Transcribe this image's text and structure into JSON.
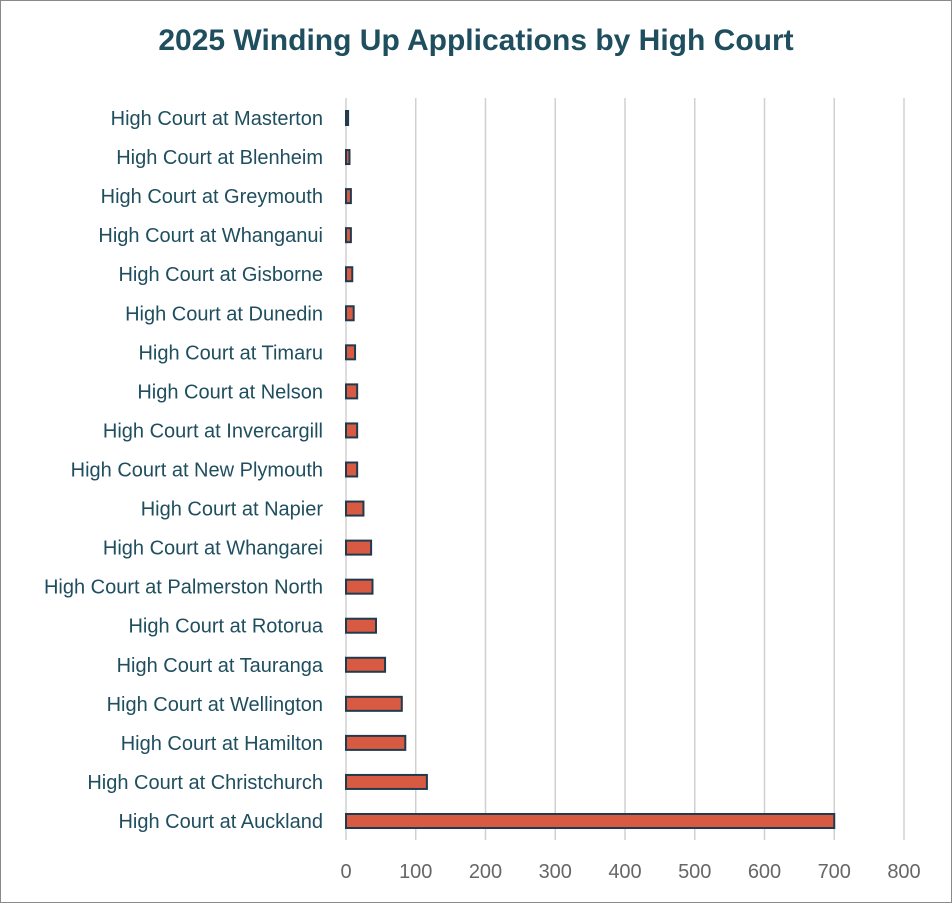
{
  "chart_data": {
    "type": "bar",
    "orientation": "horizontal",
    "title": "2025 Winding Up Applications by High Court",
    "xlabel": "",
    "ylabel": "",
    "xlim": [
      0,
      800
    ],
    "xticks": [
      "0",
      "100",
      "200",
      "300",
      "400",
      "500",
      "600",
      "700",
      "800"
    ],
    "grid": "vertical",
    "legend": "none",
    "colors": {
      "bar_fill": "#d95a43",
      "bar_stroke": "#1f3b4d",
      "grid": "#d0d0d0",
      "label": "#1f4e5f",
      "tick": "#666666"
    },
    "categories": [
      "High Court at Masterton",
      "High Court at Blenheim",
      "High Court at Greymouth",
      "High Court at Whanganui",
      "High Court at Gisborne",
      "High Court at Dunedin",
      "High Court at Timaru",
      "High Court at Nelson",
      "High Court at Invercargill",
      "High Court at New Plymouth",
      "High Court at Napier",
      "High Court at Whangarei",
      "High Court at Palmerston North",
      "High Court at Rotorua",
      "High Court at Tauranga",
      "High Court at Wellington",
      "High Court at Hamilton",
      "High Court at Christchurch",
      "High Court at Auckland"
    ],
    "values": [
      3,
      5,
      7,
      7,
      9,
      11,
      13,
      16,
      16,
      16,
      25,
      36,
      38,
      43,
      56,
      80,
      85,
      116,
      700
    ]
  }
}
